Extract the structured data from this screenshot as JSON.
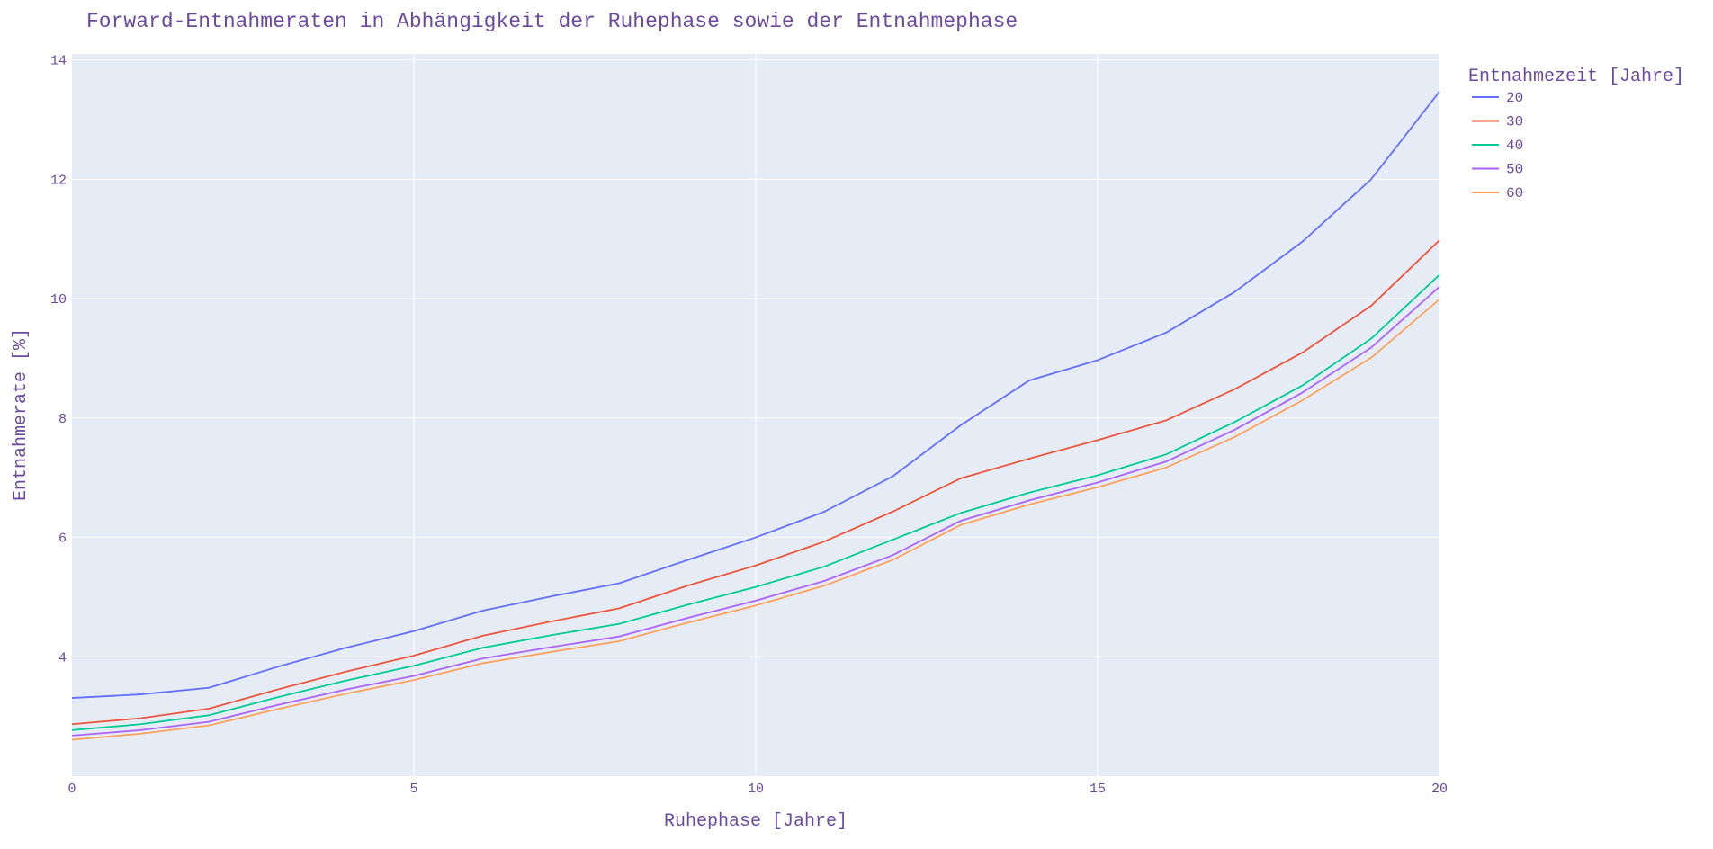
{
  "chart_data": {
    "type": "line",
    "title": "Forward-Entnahmeraten in Abhängigkeit der Ruhephase sowie der Entnahmephase",
    "xlabel": "Ruhephase [Jahre]",
    "ylabel": "Entnahmerate [%]",
    "xlim": [
      0,
      20
    ],
    "ylim": [
      2.0,
      14.1
    ],
    "xticks": [
      0,
      5,
      10,
      15,
      20
    ],
    "yticks": [
      4,
      6,
      8,
      10,
      12,
      14
    ],
    "grid": true,
    "legend_title": "Entnahmezeit [Jahre]",
    "legend_position": "right",
    "x": [
      0,
      1,
      2,
      3,
      4,
      5,
      6,
      7,
      8,
      9,
      10,
      11,
      12,
      13,
      14,
      15,
      16,
      17,
      18,
      19,
      20
    ],
    "series": [
      {
        "name": "20",
        "color": "#636efa",
        "values": [
          3.31,
          3.37,
          3.48,
          3.83,
          4.15,
          4.43,
          4.77,
          5.01,
          5.23,
          5.62,
          6.0,
          6.43,
          7.02,
          7.88,
          8.63,
          8.97,
          9.43,
          10.11,
          10.96,
          12.0,
          13.47
        ]
      },
      {
        "name": "30",
        "color": "#ef553b",
        "values": [
          2.87,
          2.97,
          3.13,
          3.45,
          3.75,
          4.02,
          4.35,
          4.59,
          4.81,
          5.19,
          5.53,
          5.93,
          6.43,
          6.99,
          7.32,
          7.63,
          7.96,
          8.48,
          9.1,
          9.88,
          10.98
        ]
      },
      {
        "name": "40",
        "color": "#00cc96",
        "values": [
          2.77,
          2.87,
          3.02,
          3.32,
          3.6,
          3.85,
          4.15,
          4.36,
          4.55,
          4.87,
          5.17,
          5.51,
          5.96,
          6.41,
          6.75,
          7.04,
          7.39,
          7.93,
          8.55,
          9.33,
          10.4
        ]
      },
      {
        "name": "50",
        "color": "#ab63fa",
        "values": [
          2.68,
          2.77,
          2.91,
          3.19,
          3.45,
          3.68,
          3.97,
          4.16,
          4.34,
          4.65,
          4.94,
          5.27,
          5.7,
          6.28,
          6.62,
          6.92,
          7.27,
          7.8,
          8.43,
          9.18,
          10.2
        ]
      },
      {
        "name": "60",
        "color": "#ffa15a",
        "values": [
          2.61,
          2.71,
          2.85,
          3.12,
          3.38,
          3.61,
          3.89,
          4.08,
          4.26,
          4.57,
          4.86,
          5.19,
          5.62,
          6.21,
          6.55,
          6.84,
          7.17,
          7.68,
          8.3,
          9.01,
          9.99
        ]
      }
    ]
  },
  "colors": {
    "plot_bg": "#e5ecf6",
    "grid": "#ffffff",
    "text": "#6b4a9e"
  }
}
